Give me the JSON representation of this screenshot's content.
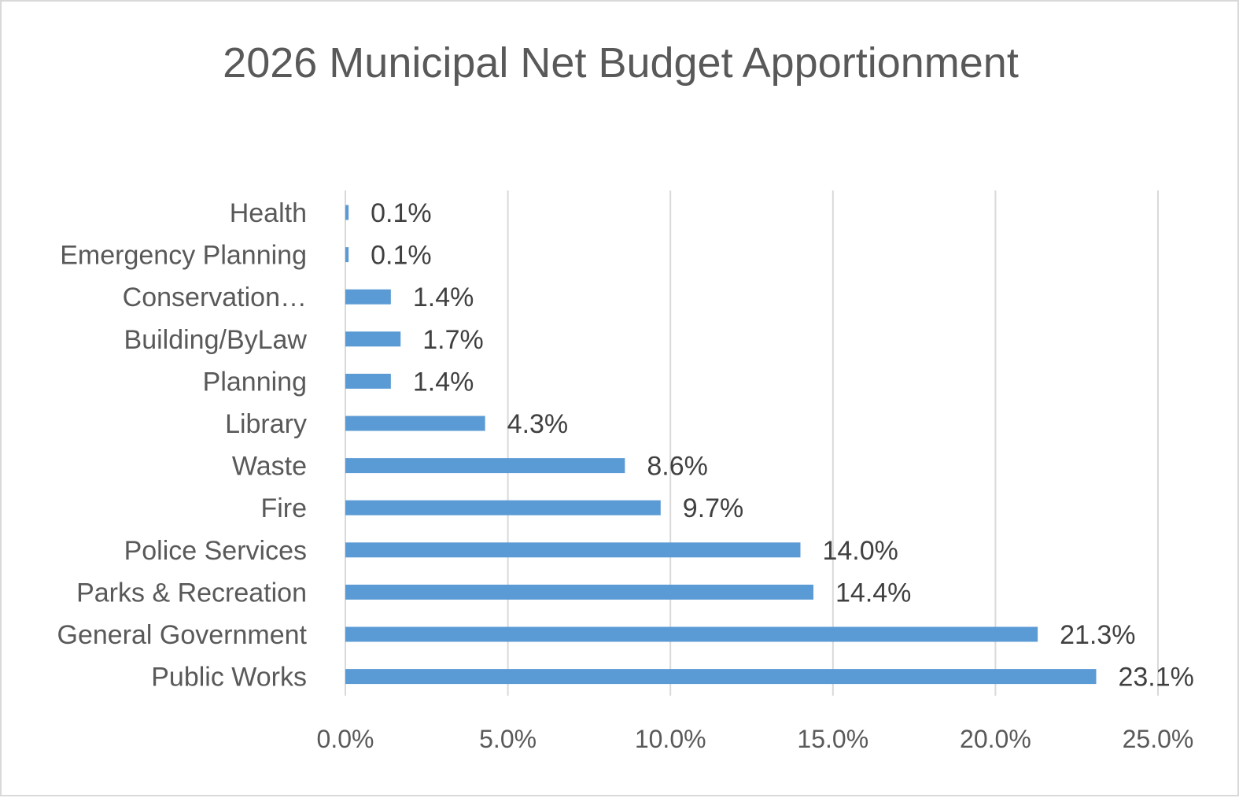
{
  "chart_data": {
    "type": "bar",
    "orientation": "horizontal",
    "title": "2026 Municipal Net Budget Apportionment",
    "categories": [
      "Health",
      "Emergency Planning",
      "Conservation…",
      "Building/ByLaw",
      "Planning",
      "Library",
      "Waste",
      "Fire",
      "Police Services",
      "Parks & Recreation",
      "General Government",
      "Public Works"
    ],
    "values": [
      0.1,
      0.1,
      1.4,
      1.7,
      1.4,
      4.3,
      8.6,
      9.7,
      14.0,
      14.4,
      21.3,
      23.1
    ],
    "data_labels": [
      "0.1%",
      "0.1%",
      "1.4%",
      "1.7%",
      "1.4%",
      "4.3%",
      "8.6%",
      "9.7%",
      "14.0%",
      "14.4%",
      "21.3%",
      "23.1%"
    ],
    "xlim": [
      0,
      25
    ],
    "x_ticks": [
      0,
      5,
      10,
      15,
      20,
      25
    ],
    "x_tick_labels": [
      "0.0%",
      "5.0%",
      "10.0%",
      "15.0%",
      "20.0%",
      "25.0%"
    ],
    "xlabel": "",
    "ylabel": "",
    "grid": "vertical",
    "legend": "none",
    "bar_color": "#5b9bd5"
  }
}
